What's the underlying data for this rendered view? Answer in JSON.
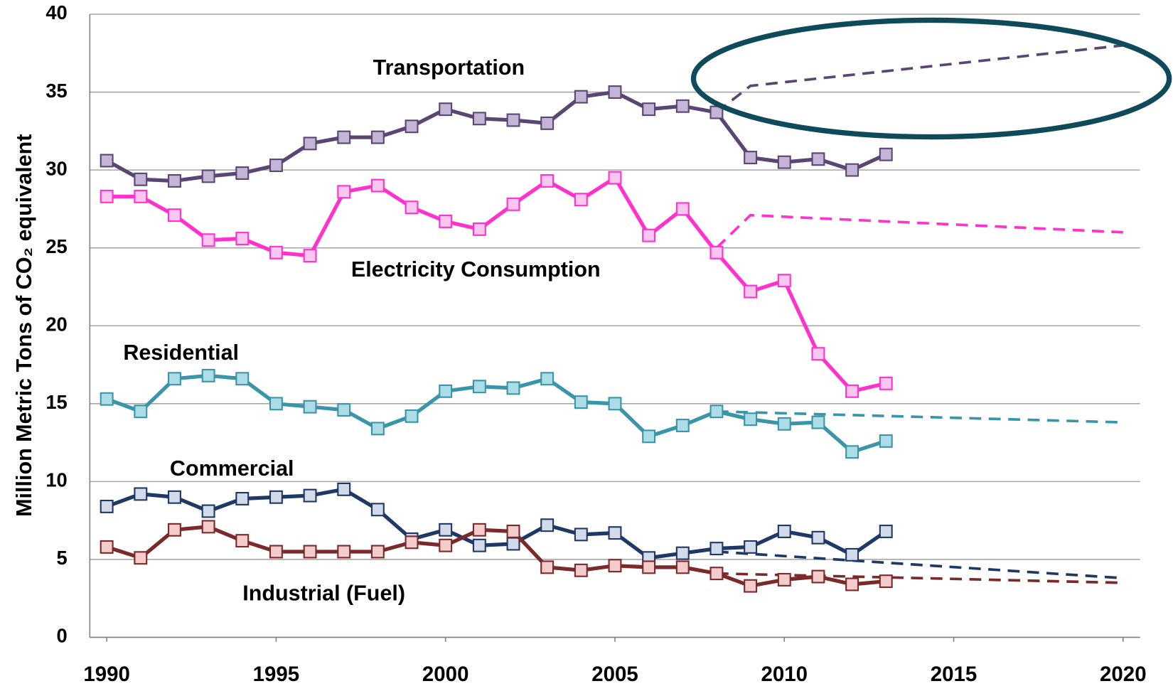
{
  "chart_data": {
    "type": "line",
    "y_label": "Million Metric Tons of CO₂ equivalent",
    "x": [
      1990,
      1991,
      1992,
      1993,
      1994,
      1995,
      1996,
      1997,
      1998,
      1999,
      2000,
      2001,
      2002,
      2003,
      2004,
      2005,
      2006,
      2007,
      2008,
      2009,
      2010,
      2011,
      2012,
      2013
    ],
    "xlim": [
      1989.5,
      2020.5
    ],
    "xticks": [
      1990,
      1995,
      2000,
      2005,
      2010,
      2015,
      2020
    ],
    "ylim": [
      0,
      40
    ],
    "yticks": [
      0,
      5,
      10,
      15,
      20,
      25,
      30,
      35,
      40
    ],
    "grid": true,
    "series": [
      {
        "name": "Transportation",
        "color": "#5a4672",
        "marker_color": "#c4b4d6",
        "values": [
          30.6,
          29.4,
          29.3,
          29.6,
          29.8,
          30.3,
          31.7,
          32.1,
          32.1,
          32.8,
          33.9,
          33.3,
          33.2,
          33.0,
          34.7,
          35.0,
          33.9,
          34.1,
          33.7,
          30.8,
          30.5,
          30.7,
          30.0,
          31.0
        ],
        "projection": {
          "x": [
            2008,
            2009,
            2020
          ],
          "values": [
            33.7,
            35.4,
            38.0
          ]
        }
      },
      {
        "name": "Electricity Consumption",
        "color": "#ff33cc",
        "marker_color": "#fbc6ef",
        "values": [
          28.3,
          28.3,
          27.1,
          25.5,
          25.6,
          24.7,
          24.5,
          28.6,
          29.0,
          27.6,
          26.7,
          26.2,
          27.8,
          29.3,
          28.1,
          29.5,
          25.8,
          27.5,
          24.7,
          22.2,
          22.9,
          18.2,
          15.8,
          16.3
        ],
        "projection": {
          "x": [
            2008,
            2009,
            2020
          ],
          "values": [
            25.0,
            27.1,
            26.0
          ]
        }
      },
      {
        "name": "Residential",
        "color": "#3a95a8",
        "marker_color": "#acdde6",
        "values": [
          15.3,
          14.5,
          16.6,
          16.8,
          16.6,
          15.0,
          14.8,
          14.6,
          13.4,
          14.2,
          15.8,
          16.1,
          16.0,
          16.6,
          15.1,
          15.0,
          12.9,
          13.6,
          14.5,
          14.0,
          13.7,
          13.8,
          11.9,
          12.6
        ],
        "projection": {
          "x": [
            2008,
            2020
          ],
          "values": [
            14.5,
            13.8
          ]
        }
      },
      {
        "name": "Commercial",
        "color": "#1f3864",
        "marker_color": "#d3dbea",
        "values": [
          8.4,
          9.2,
          9.0,
          8.1,
          8.9,
          9.0,
          9.1,
          9.5,
          8.2,
          6.3,
          6.9,
          5.9,
          6.0,
          7.2,
          6.6,
          6.7,
          5.1,
          5.4,
          5.7,
          5.8,
          6.8,
          6.4,
          5.3,
          6.8
        ],
        "projection": {
          "x": [
            2008,
            2020
          ],
          "values": [
            5.5,
            3.8
          ]
        }
      },
      {
        "name": "Industrial (Fuel)",
        "color": "#7a2a2a",
        "marker_color": "#f4cccc",
        "values": [
          5.8,
          5.1,
          6.9,
          7.1,
          6.2,
          5.5,
          5.5,
          5.5,
          5.5,
          6.1,
          5.9,
          6.9,
          6.8,
          4.5,
          4.3,
          4.6,
          4.5,
          4.5,
          4.1,
          3.3,
          3.7,
          3.9,
          3.4,
          3.6
        ],
        "projection": {
          "x": [
            2008,
            2020
          ],
          "values": [
            4.1,
            3.5
          ]
        }
      }
    ]
  }
}
